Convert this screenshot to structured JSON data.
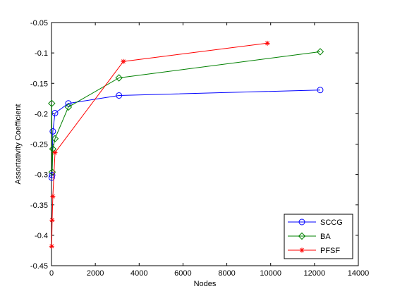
{
  "chart_data": {
    "type": "line",
    "title": "",
    "xlabel": "Nodes",
    "ylabel": "Assortativity Coefficient",
    "xlim": [
      0,
      14000
    ],
    "ylim": [
      -0.45,
      -0.05
    ],
    "xticks": [
      "0",
      "2000",
      "4000",
      "6000",
      "8000",
      "10000",
      "12000",
      "14000"
    ],
    "xtick_values": [
      0,
      2000,
      4000,
      6000,
      8000,
      10000,
      12000,
      14000
    ],
    "yticks": [
      "-0.05",
      "-0.1",
      "-0.15",
      "-0.2",
      "-0.25",
      "-0.3",
      "-0.35",
      "-0.4",
      "-0.45"
    ],
    "ytick_values": [
      -0.05,
      -0.1,
      -0.15,
      -0.2,
      -0.25,
      -0.3,
      -0.35,
      -0.4,
      -0.45
    ],
    "grid": false,
    "legend_position": "bottom-right",
    "series": [
      {
        "name": "SCCG",
        "color": "#0000ff",
        "marker": "circle",
        "x": [
          10,
          30,
          60,
          160,
          770,
          3080,
          12260
        ],
        "y": [
          -0.305,
          -0.301,
          -0.229,
          -0.199,
          -0.183,
          -0.17,
          -0.161
        ]
      },
      {
        "name": "BA",
        "color": "#008000",
        "marker": "diamond",
        "x": [
          10,
          30,
          60,
          160,
          770,
          3080,
          12260
        ],
        "y": [
          -0.183,
          -0.296,
          -0.258,
          -0.241,
          -0.189,
          -0.141,
          -0.098
        ]
      },
      {
        "name": "PFSF",
        "color": "#ff0000",
        "marker": "asterisk",
        "x": [
          10,
          30,
          60,
          160,
          3280,
          9850
        ],
        "y": [
          -0.418,
          -0.375,
          -0.336,
          -0.264,
          -0.114,
          -0.084
        ]
      }
    ]
  }
}
